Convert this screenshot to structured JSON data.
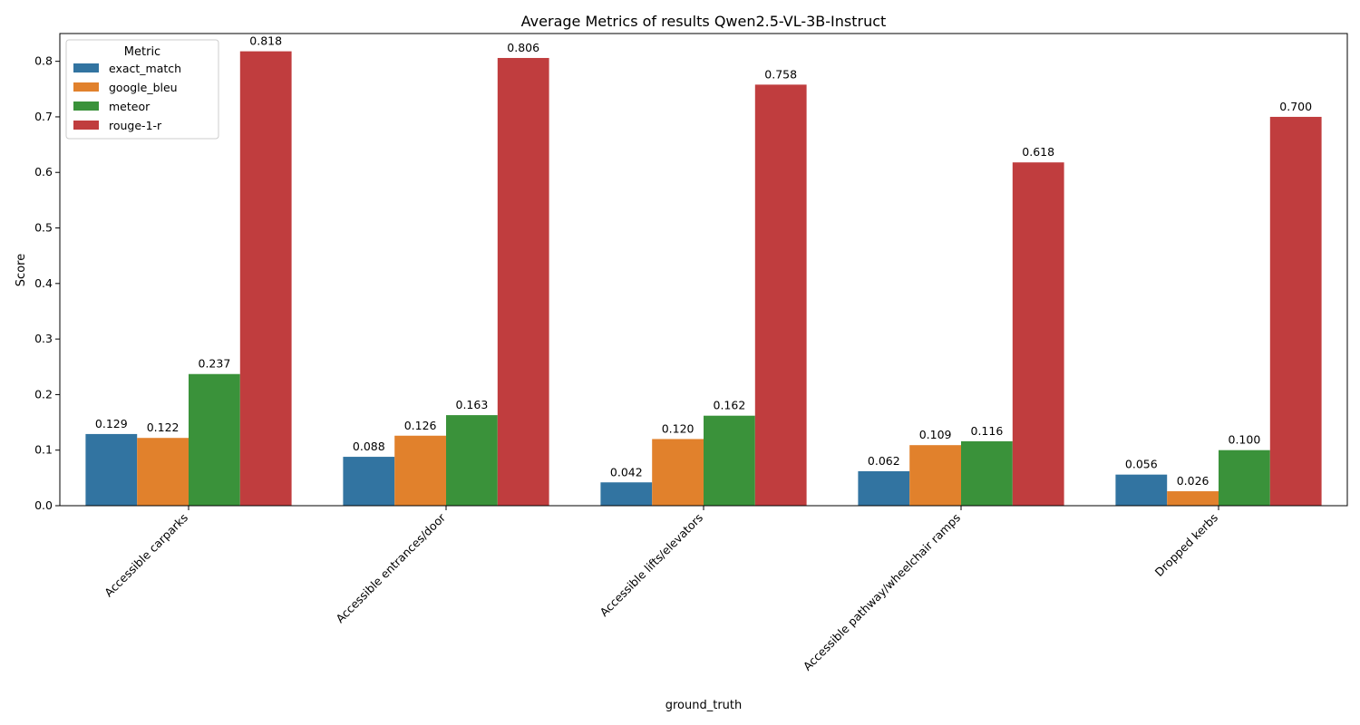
{
  "chart_data": {
    "type": "bar",
    "title": "Average Metrics of results Qwen2.5-VL-3B-Instruct",
    "xlabel": "ground_truth",
    "ylabel": "Score",
    "ylim": [
      0,
      0.85
    ],
    "yticks": [
      "0.0",
      "0.1",
      "0.2",
      "0.3",
      "0.4",
      "0.5",
      "0.6",
      "0.7",
      "0.8"
    ],
    "categories": [
      "Accessible carparks",
      "Accessible entrances/door",
      "Accessible lifts/elevators",
      "Accessible pathway/wheelchair ramps",
      "Dropped kerbs"
    ],
    "legend": {
      "title": "Metric",
      "placement": "top-left"
    },
    "series": [
      {
        "name": "exact_match",
        "color": "#3274a1",
        "values": [
          0.129,
          0.088,
          0.042,
          0.062,
          0.056
        ],
        "labels": [
          "0.129",
          "0.088",
          "0.042",
          "0.062",
          "0.056"
        ]
      },
      {
        "name": "google_bleu",
        "color": "#e1812c",
        "values": [
          0.122,
          0.126,
          0.12,
          0.109,
          0.026
        ],
        "labels": [
          "0.122",
          "0.126",
          "0.120",
          "0.109",
          "0.026"
        ]
      },
      {
        "name": "meteor",
        "color": "#3a923a",
        "values": [
          0.237,
          0.163,
          0.162,
          0.116,
          0.1
        ],
        "labels": [
          "0.237",
          "0.163",
          "0.162",
          "0.116",
          "0.100"
        ]
      },
      {
        "name": "rouge-1-r",
        "color": "#c03d3e",
        "values": [
          0.818,
          0.806,
          0.758,
          0.618,
          0.7
        ],
        "labels": [
          "0.818",
          "0.806",
          "0.758",
          "0.618",
          "0.700"
        ]
      }
    ],
    "grid": false
  }
}
